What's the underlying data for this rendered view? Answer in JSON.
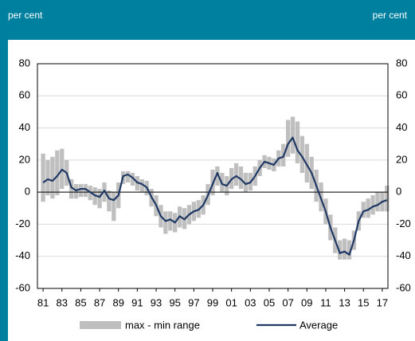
{
  "chart_data": {
    "type": "line",
    "y_label": "per cent",
    "y2_label": "per cent",
    "x": [
      1981,
      1981.5,
      1982,
      1982.5,
      1983,
      1983.5,
      1984,
      1984.5,
      1985,
      1985.5,
      1986,
      1986.5,
      1987,
      1987.5,
      1988,
      1988.5,
      1989,
      1989.5,
      1990,
      1990.5,
      1991,
      1991.5,
      1992,
      1992.5,
      1993,
      1993.5,
      1994,
      1994.5,
      1995,
      1995.5,
      1996,
      1996.5,
      1997,
      1997.5,
      1998,
      1998.5,
      1999,
      1999.5,
      2000,
      2000.5,
      2001,
      2001.5,
      2002,
      2002.5,
      2003,
      2003.5,
      2004,
      2004.5,
      2005,
      2005.5,
      2006,
      2006.5,
      2007,
      2007.5,
      2008,
      2008.5,
      2009,
      2009.5,
      2010,
      2010.5,
      2011,
      2011.5,
      2012,
      2012.5,
      2013,
      2013.5,
      2014,
      2014.5,
      2015,
      2015.5,
      2016,
      2016.5,
      2017,
      2017.5
    ],
    "series": [
      {
        "name": "max - min range",
        "color": "#bfbfbf",
        "high": [
          24,
          20,
          22,
          26,
          27,
          20,
          8,
          5,
          5,
          5,
          4,
          3,
          2,
          6,
          1,
          0,
          6,
          13,
          13,
          12,
          10,
          8,
          7,
          2,
          -2,
          -8,
          -12,
          -12,
          -13,
          -9,
          -10,
          -8,
          -6,
          -5,
          -2,
          5,
          14,
          16,
          12,
          10,
          15,
          18,
          16,
          12,
          12,
          16,
          20,
          23,
          22,
          21,
          26,
          30,
          45,
          47,
          44,
          35,
          30,
          22,
          14,
          6,
          -4,
          -14,
          -22,
          -30,
          -29,
          -30,
          -24,
          -12,
          -6,
          -4,
          -2,
          0,
          0,
          4
        ],
        "low": [
          -6,
          -2,
          -4,
          -2,
          2,
          4,
          -4,
          -4,
          -3,
          -3,
          -5,
          -8,
          -10,
          -6,
          -12,
          -18,
          -10,
          5,
          6,
          4,
          1,
          0,
          -2,
          -9,
          -15,
          -22,
          -26,
          -24,
          -25,
          -22,
          -23,
          -20,
          -18,
          -16,
          -14,
          -8,
          -2,
          4,
          0,
          -2,
          2,
          4,
          2,
          0,
          1,
          4,
          10,
          15,
          14,
          13,
          16,
          16,
          22,
          24,
          18,
          12,
          6,
          2,
          -6,
          -12,
          -20,
          -30,
          -38,
          -42,
          -42,
          -42,
          -36,
          -24,
          -16,
          -16,
          -14,
          -12,
          -12,
          -12
        ]
      },
      {
        "name": "Average",
        "color": "#1f3864",
        "values": [
          6,
          8,
          7,
          10,
          14,
          12,
          3,
          1,
          2,
          2,
          0,
          -2,
          -3,
          1,
          -4,
          -5,
          -2,
          10,
          11,
          9,
          6,
          5,
          3,
          -3,
          -8,
          -15,
          -18,
          -17,
          -19,
          -15,
          -17,
          -14,
          -12,
          -11,
          -8,
          -2,
          5,
          12,
          5,
          4,
          8,
          10,
          8,
          5,
          6,
          10,
          15,
          19,
          18,
          17,
          21,
          22,
          30,
          34,
          26,
          22,
          17,
          12,
          4,
          -4,
          -12,
          -22,
          -30,
          -38,
          -37,
          -39,
          -30,
          -18,
          -12,
          -11,
          -9,
          -8,
          -6,
          -5
        ]
      }
    ],
    "xlim": [
      1980.4,
      2017.6
    ],
    "xticks": [
      {
        "value": 1981,
        "label": "81"
      },
      {
        "value": 1983,
        "label": "83"
      },
      {
        "value": 1985,
        "label": "85"
      },
      {
        "value": 1987,
        "label": "87"
      },
      {
        "value": 1989,
        "label": "89"
      },
      {
        "value": 1991,
        "label": "91"
      },
      {
        "value": 1993,
        "label": "93"
      },
      {
        "value": 1995,
        "label": "95"
      },
      {
        "value": 1997,
        "label": "97"
      },
      {
        "value": 1999,
        "label": "99"
      },
      {
        "value": 2001,
        "label": "01"
      },
      {
        "value": 2003,
        "label": "03"
      },
      {
        "value": 2005,
        "label": "05"
      },
      {
        "value": 2007,
        "label": "07"
      },
      {
        "value": 2009,
        "label": "09"
      },
      {
        "value": 2011,
        "label": "11"
      },
      {
        "value": 2013,
        "label": "13"
      },
      {
        "value": 2015,
        "label": "15"
      },
      {
        "value": 2017,
        "label": "17"
      }
    ],
    "ylim": [
      -60,
      80
    ],
    "yticks": [
      -60,
      -40,
      -20,
      0,
      20,
      40,
      60,
      80
    ],
    "y2lim": [
      -60,
      80
    ],
    "y2ticks": [
      -60,
      -40,
      -20,
      0,
      20,
      40,
      60,
      80
    ],
    "grid": true
  }
}
